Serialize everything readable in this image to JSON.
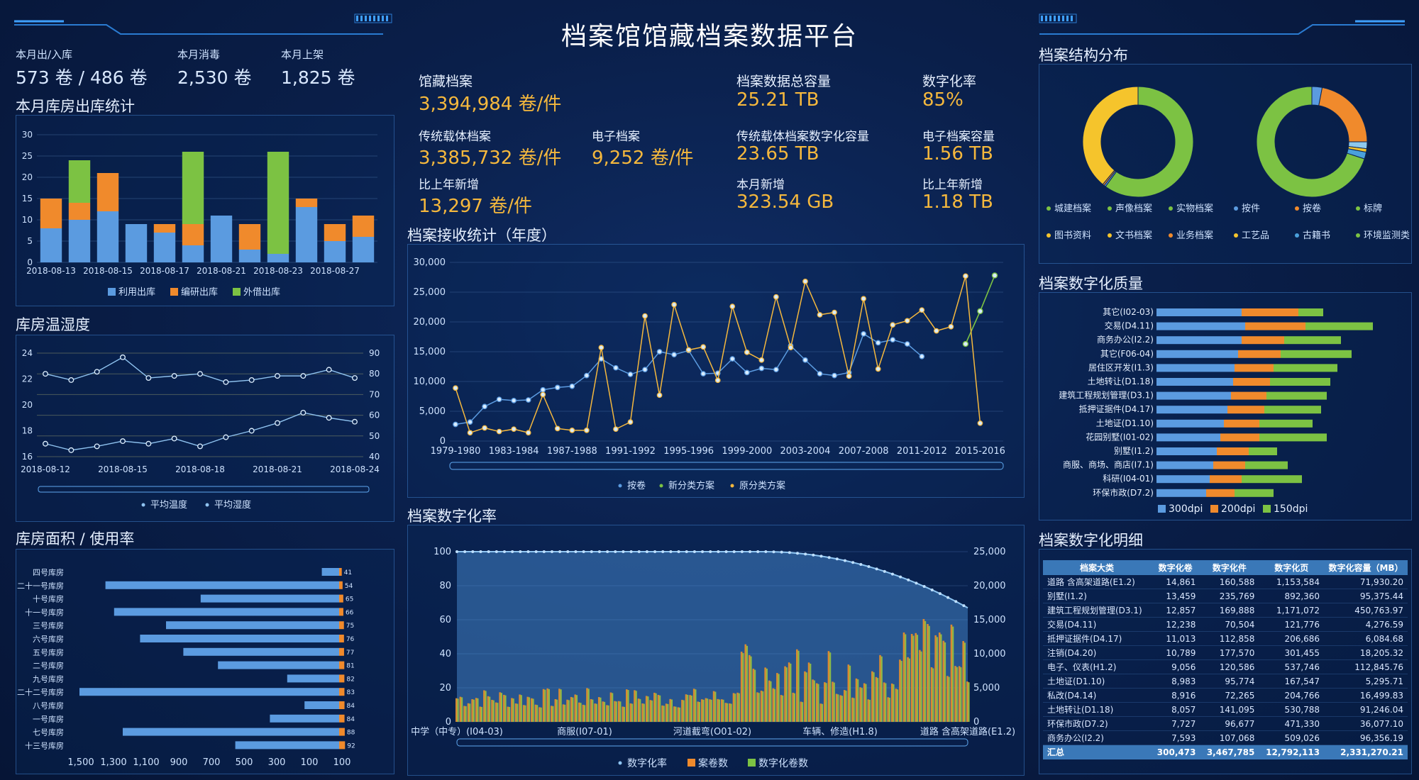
{
  "title": "档案馆馆藏档案数据平台",
  "top_left": {
    "stats": [
      {
        "label": "本月出/入库",
        "value": "573 卷 / 486 卷"
      },
      {
        "label": "本月消毒",
        "value": "2,530 卷"
      },
      {
        "label": "本月上架",
        "value": "1,825 卷"
      }
    ]
  },
  "kpis": {
    "collection": {
      "label": "馆藏档案",
      "value": "3,394,984 卷/件"
    },
    "total_capacity": {
      "label": "档案数据总容量",
      "value": "25.21 TB"
    },
    "digital_rate": {
      "label": "数字化率",
      "value": "85%"
    },
    "traditional": {
      "label": "传统载体档案",
      "value": "3,385,732 卷/件"
    },
    "electronic": {
      "label": "电子档案",
      "value": "9,252 卷/件"
    },
    "trad_digital_cap": {
      "label": "传统载体档案数字化容量",
      "value": "23.65 TB"
    },
    "electronic_cap": {
      "label": "电子档案容量",
      "value": "1.56 TB"
    },
    "yoy_new": {
      "label": "比上年新增",
      "value": "13,297 卷/件"
    },
    "month_new": {
      "label": "本月新增",
      "value": "323.54 GB"
    },
    "yoy_new_cap": {
      "label": "比上年新增",
      "value": "1.18 TB"
    }
  },
  "sections": {
    "warehouse_out": "本月库房出库统计",
    "temp_humidity": "库房温湿度",
    "area_usage": "库房面积 / 使用率",
    "receive_stats": "档案接收统计（年度）",
    "digital_rate": "档案数字化率",
    "structure": "档案结构分布",
    "quality": "档案数字化质量",
    "detail": "档案数字化明细"
  },
  "colors": {
    "blue": "#5b9be0",
    "orange": "#f08a2c",
    "green": "#7cc243",
    "yellow": "#f5b83d",
    "kpi": "#f5b83d"
  },
  "chart_data": [
    {
      "id": "warehouse_out",
      "type": "bar",
      "stacked": true,
      "categories": [
        "2018-08-13",
        "2018-08-14",
        "2018-08-15",
        "2018-08-16",
        "2018-08-17",
        "2018-08-18",
        "2018-08-21",
        "2018-08-22",
        "2018-08-23",
        "2018-08-24",
        "2018-08-27",
        "2018-08-28"
      ],
      "tick_labels": [
        "2018-08-13",
        "2018-08-15",
        "2018-08-17",
        "2018-08-21",
        "2018-08-23",
        "2018-08-27"
      ],
      "series": [
        {
          "name": "利用出库",
          "color": "#5b9be0",
          "values": [
            8,
            10,
            12,
            9,
            7,
            4,
            11,
            3,
            2,
            13,
            5,
            6
          ]
        },
        {
          "name": "编研出库",
          "color": "#f08a2c",
          "values": [
            7,
            4,
            9,
            0,
            2,
            5,
            0,
            6,
            0,
            2,
            4,
            5
          ]
        },
        {
          "name": "外借出库",
          "color": "#7cc243",
          "values": [
            0,
            10,
            0,
            0,
            0,
            17,
            0,
            0,
            24,
            0,
            0,
            0
          ]
        }
      ],
      "ylim": [
        0,
        30
      ],
      "yticks": [
        0,
        5,
        10,
        15,
        20,
        25,
        30
      ]
    },
    {
      "id": "temp_humidity",
      "type": "line",
      "x_tick_labels": [
        "2018-08-12",
        "2018-08-15",
        "2018-08-18",
        "2018-08-21",
        "2018-08-24"
      ],
      "series": [
        {
          "name": "平均温度",
          "axis": "left",
          "values": [
            17,
            16.5,
            16.8,
            17.2,
            17,
            17.4,
            16.8,
            17.5,
            18,
            18.6,
            19.4,
            19,
            18.7
          ]
        },
        {
          "name": "平均湿度",
          "axis": "right",
          "values": [
            80,
            77,
            81,
            88,
            78,
            79,
            80,
            76,
            77,
            79,
            79,
            82,
            78
          ]
        }
      ],
      "ylim_left": [
        16,
        24
      ],
      "yticks_left": [
        16,
        18,
        20,
        22,
        24
      ],
      "ylim_right": [
        40,
        90
      ],
      "yticks_right": [
        40,
        50,
        60,
        70,
        80,
        90
      ]
    },
    {
      "id": "area_usage",
      "type": "bar",
      "orientation": "horizontal",
      "categories": [
        "四号库房",
        "二十一号库房",
        "十号库房",
        "十一号库房",
        "三号库房",
        "六号库房",
        "五号库房",
        "二号库房",
        "九号库房",
        "二十二号库房",
        "八号库房",
        "一号库房",
        "七号库房",
        "十三号库房"
      ],
      "series": [
        {
          "name": "库房面积（㎡）",
          "color": "#5b9be0",
          "values": [
            100,
            1350,
            800,
            1300,
            1000,
            1150,
            900,
            700,
            300,
            1500,
            200,
            400,
            1250,
            600
          ]
        },
        {
          "name": "使用率（%）",
          "color": "#f08a2c",
          "values": [
            41,
            54,
            65,
            66,
            75,
            76,
            77,
            81,
            82,
            83,
            84,
            84,
            88,
            92
          ]
        }
      ],
      "xticks": [
        "1,500",
        "1,300",
        "1,100",
        "900",
        "700",
        "500",
        "300",
        "100",
        "100"
      ]
    },
    {
      "id": "receive_stats",
      "type": "line",
      "x_tick_labels": [
        "1979-1980",
        "1983-1984",
        "1987-1988",
        "1991-1992",
        "1995-1996",
        "1999-2000",
        "2003-2004",
        "2007-2008",
        "2011-2012",
        "2015-2016"
      ],
      "series": [
        {
          "name": "按卷",
          "color": "#5b9be0",
          "values": [
            2800,
            3200,
            5800,
            7000,
            6800,
            6900,
            8600,
            9000,
            9200,
            11000,
            13800,
            12300,
            11200,
            12000,
            15000,
            14500,
            15200,
            11300,
            11400,
            13800,
            11500,
            12200,
            12000,
            16000,
            13600,
            11300,
            11000,
            11500,
            18000,
            16500,
            17000,
            16300,
            14200
          ]
        },
        {
          "name": "新分类方案",
          "color": "#7cc243",
          "values": [
            null,
            null,
            null,
            null,
            null,
            null,
            null,
            null,
            null,
            null,
            null,
            null,
            null,
            null,
            null,
            null,
            null,
            null,
            null,
            null,
            null,
            null,
            null,
            null,
            null,
            null,
            null,
            null,
            null,
            null,
            null,
            null,
            null,
            null,
            null,
            null,
            null,
            null,
            null,
            16300,
            21800,
            27800
          ]
        },
        {
          "name": "原分类方案",
          "color": "#f5b83d",
          "values": [
            8900,
            1400,
            2200,
            1600,
            2000,
            1400,
            7800,
            2100,
            1800,
            1800,
            15700,
            2000,
            3200,
            21000,
            7700,
            22900,
            15300,
            15800,
            10200,
            22600,
            14900,
            13600,
            24200,
            15700,
            26800,
            21200,
            21600,
            10900,
            23900,
            12100,
            19500,
            20200,
            22000,
            18500,
            19200,
            27700,
            3000
          ]
        }
      ],
      "ylim": [
        0,
        30000
      ],
      "yticks": [
        "0",
        "5,000",
        "10,000",
        "15,000",
        "20,000",
        "25,000",
        "30,000"
      ]
    },
    {
      "id": "digital_rate",
      "type": "bar",
      "x_tick_labels": [
        "中学（中专）(I04-03)",
        "商服(I07-01)",
        "河道截弯(O01-02)",
        "车辆、修造(H1.8)",
        "道路 含高架道路(E1.2)"
      ],
      "series": [
        {
          "name": "数字化率",
          "color": "#5b9be0"
        },
        {
          "name": "案卷数",
          "color": "#f08a2c"
        },
        {
          "name": "数字化卷数",
          "color": "#7cc243"
        }
      ],
      "ylim_left": [
        0,
        100
      ],
      "yticks_left": [
        0,
        20,
        40,
        60,
        80,
        100
      ],
      "ylim_right": [
        0,
        25000
      ],
      "yticks_right": [
        "0",
        "5,000",
        "10,000",
        "15,000",
        "20,000",
        "25,000"
      ]
    },
    {
      "id": "structure",
      "type": "pie",
      "donuts": [
        {
          "slices": [
            {
              "name": "城建档案",
              "value": 60,
              "color": "#7cc243"
            },
            {
              "name": "声像档案",
              "value": 0.5,
              "color": "#5b9be0"
            },
            {
              "name": "实物档案",
              "value": 0.5,
              "color": "#f08a2c"
            },
            {
              "name": "图书资料",
              "value": 39,
              "color": "#f5c42c"
            }
          ]
        },
        {
          "slices": [
            {
              "name": "按件",
              "value": 3,
              "color": "#5b9be0"
            },
            {
              "name": "按卷",
              "value": 22,
              "color": "#f08a2c"
            },
            {
              "name": "标牌",
              "value": 2,
              "color": "#8ec9ee"
            },
            {
              "name": "工艺品",
              "value": 1,
              "color": "#f5c42c"
            },
            {
              "name": "古籍书",
              "value": 2,
              "color": "#4aa0dc"
            },
            {
              "name": "环境监测类",
              "value": 70,
              "color": "#7cc243"
            }
          ]
        }
      ],
      "legend_left": [
        "城建档案",
        "声像档案",
        "实物档案",
        "图书资料",
        "文书档案",
        "业务档案"
      ],
      "legend_right": [
        "按件",
        "按卷",
        "标牌",
        "工艺品",
        "古籍书",
        "环境监测类"
      ]
    },
    {
      "id": "quality",
      "type": "bar",
      "orientation": "horizontal",
      "stacked": true,
      "categories": [
        "其它(I02-03)",
        "交易(D4.11)",
        "商务办公(I2.2)",
        "其它(F06-04)",
        "居住区开发(I1.3)",
        "土地转让(D1.18)",
        "建筑工程规划管理(D3.1)",
        "抵押证据件(D4.17)",
        "土地证(D1.10)",
        "花园别墅(I01-02)",
        "别墅(I1.2)",
        "商服、商场、商店(I7.1)",
        "科研(I04-01)",
        "环保市政(D7.2)"
      ],
      "series": [
        {
          "name": "300dpi",
          "color": "#5b9be0",
          "values": [
            120,
            125,
            120,
            115,
            110,
            108,
            105,
            100,
            95,
            90,
            85,
            80,
            75,
            70
          ]
        },
        {
          "name": "200dpi",
          "color": "#f08a2c",
          "values": [
            80,
            85,
            60,
            60,
            55,
            52,
            50,
            52,
            50,
            55,
            45,
            45,
            45,
            40
          ]
        },
        {
          "name": "150dpi",
          "color": "#7cc243",
          "values": [
            35,
            95,
            80,
            100,
            90,
            85,
            85,
            80,
            75,
            95,
            40,
            60,
            85,
            55
          ]
        }
      ]
    }
  ],
  "detail_table": {
    "headers": [
      "档案大类",
      "数字化卷",
      "数字化件",
      "数字化页",
      "数字化容量（MB）"
    ],
    "rows": [
      [
        "道路 含高架道路(E1.2)",
        "14,861",
        "160,588",
        "1,153,584",
        "71,930.20"
      ],
      [
        "别墅(I1.2)",
        "13,459",
        "235,769",
        "892,360",
        "95,375.44"
      ],
      [
        "建筑工程规划管理(D3.1)",
        "12,857",
        "169,888",
        "1,171,072",
        "450,763.97"
      ],
      [
        "交易(D4.11)",
        "12,238",
        "70,504",
        "121,776",
        "4,276.59"
      ],
      [
        "抵押证据件(D4.17)",
        "11,013",
        "112,858",
        "206,686",
        "6,084.68"
      ],
      [
        "注销(D4.20)",
        "10,789",
        "177,570",
        "301,455",
        "18,205.32"
      ],
      [
        "电子、仪表(H1.2)",
        "9,056",
        "120,586",
        "537,746",
        "112,845.76"
      ],
      [
        "土地证(D1.10)",
        "8,983",
        "95,774",
        "167,547",
        "5,295.71"
      ],
      [
        "私改(D4.14)",
        "8,916",
        "72,265",
        "204,766",
        "16,499.83"
      ],
      [
        "土地转让(D1.18)",
        "8,057",
        "141,095",
        "530,788",
        "91,246.04"
      ],
      [
        "环保市政(D7.2)",
        "7,727",
        "96,677",
        "471,330",
        "36,077.10"
      ],
      [
        "商务办公(I2.2)",
        "7,593",
        "107,068",
        "509,026",
        "96,356.19"
      ]
    ],
    "total": [
      "汇总",
      "300,473",
      "3,467,785",
      "12,792,113",
      "2,331,270.21"
    ]
  }
}
